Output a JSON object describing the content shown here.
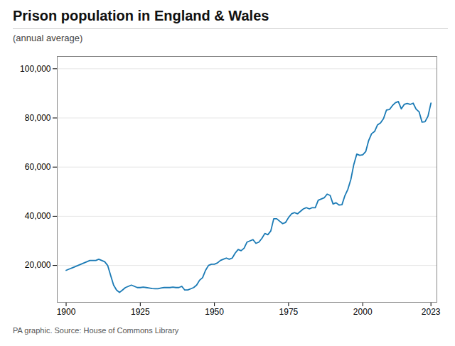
{
  "chart_data": {
    "type": "line",
    "title": "Prison population in England & Wales",
    "subtitle": "(annual average)",
    "source": "PA graphic. Source: House of Commons Library",
    "color": "#1a7ab5",
    "x": [
      1900,
      1901,
      1902,
      1903,
      1904,
      1905,
      1906,
      1907,
      1908,
      1909,
      1910,
      1911,
      1912,
      1913,
      1914,
      1915,
      1916,
      1917,
      1918,
      1919,
      1920,
      1921,
      1922,
      1923,
      1924,
      1925,
      1926,
      1927,
      1928,
      1929,
      1930,
      1931,
      1932,
      1933,
      1934,
      1935,
      1936,
      1937,
      1938,
      1939,
      1940,
      1941,
      1942,
      1943,
      1944,
      1945,
      1946,
      1947,
      1948,
      1949,
      1950,
      1951,
      1952,
      1953,
      1954,
      1955,
      1956,
      1957,
      1958,
      1959,
      1960,
      1961,
      1962,
      1963,
      1964,
      1965,
      1966,
      1967,
      1968,
      1969,
      1970,
      1971,
      1972,
      1973,
      1974,
      1975,
      1976,
      1977,
      1978,
      1979,
      1980,
      1981,
      1982,
      1983,
      1984,
      1985,
      1986,
      1987,
      1988,
      1989,
      1990,
      1991,
      1992,
      1993,
      1994,
      1995,
      1996,
      1997,
      1998,
      1999,
      2000,
      2001,
      2002,
      2003,
      2004,
      2005,
      2006,
      2007,
      2008,
      2009,
      2010,
      2011,
      2012,
      2013,
      2014,
      2015,
      2016,
      2017,
      2018,
      2019,
      2020,
      2021,
      2022,
      2023
    ],
    "values": [
      18000,
      18500,
      19000,
      19500,
      20000,
      20500,
      21000,
      21500,
      22000,
      22000,
      22000,
      22500,
      22000,
      21500,
      20000,
      16000,
      12000,
      10000,
      9000,
      10000,
      11000,
      11500,
      12000,
      11500,
      11000,
      11000,
      11200,
      11000,
      10800,
      10600,
      10500,
      10500,
      10800,
      11000,
      11000,
      11000,
      11200,
      11000,
      11000,
      11500,
      10000,
      10000,
      10500,
      11000,
      12000,
      14000,
      15000,
      18000,
      20000,
      20500,
      20500,
      21000,
      22000,
      22500,
      23000,
      22500,
      23000,
      25000,
      26500,
      26000,
      27000,
      29500,
      30000,
      30500,
      29000,
      29500,
      31000,
      33000,
      32500,
      34000,
      39000,
      39000,
      38000,
      37000,
      37500,
      39500,
      41000,
      41500,
      41000,
      42000,
      43000,
      43500,
      43000,
      43500,
      43500,
      46500,
      47000,
      47500,
      49000,
      48500,
      45000,
      45500,
      44600,
      44700,
      48400,
      51000,
      55000,
      61100,
      65300,
      64800,
      65000,
      66300,
      70800,
      73600,
      74500,
      77200,
      78000,
      79700,
      83200,
      83400,
      85000,
      86200,
      86700,
      83700,
      85500,
      85900,
      85500,
      86000,
      83600,
      82500,
      78300,
      78450,
      80700,
      86000
    ],
    "xlim": [
      1897,
      2025
    ],
    "xticks": [
      1900,
      1925,
      1950,
      1975,
      2000,
      2023
    ],
    "ylim": [
      5000,
      105000
    ],
    "yticks": [
      {
        "value": 20000,
        "label": "20,000"
      },
      {
        "value": 40000,
        "label": "40,000"
      },
      {
        "value": 60000,
        "label": "60,000"
      },
      {
        "value": 80000,
        "label": "80,000"
      },
      {
        "value": 100000,
        "label": "100,000"
      }
    ],
    "grid": true
  }
}
